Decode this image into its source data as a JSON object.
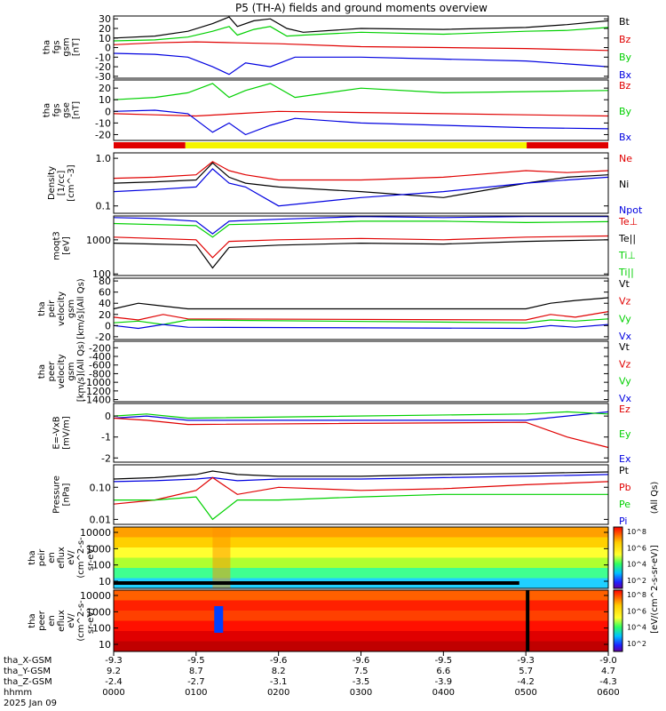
{
  "title": "P5 (TH-A) fields and ground moments overview",
  "colors": {
    "black": "#000000",
    "red": "#e00000",
    "green": "#00d000",
    "blue": "#0000e0",
    "yellow": "#f5f500"
  },
  "time_axis": {
    "ticks": [
      {
        "x": "-9.3",
        "y": "9.2",
        "z": "-2.4",
        "hhmm": "0000"
      },
      {
        "x": "-9.5",
        "y": "8.7",
        "z": "-2.7",
        "hhmm": "0100"
      },
      {
        "x": "-9.6",
        "y": "8.2",
        "z": "-3.1",
        "hhmm": "0200"
      },
      {
        "x": "-9.6",
        "y": "7.5",
        "z": "-3.5",
        "hhmm": "0300"
      },
      {
        "x": "-9.5",
        "y": "6.6",
        "z": "-3.9",
        "hhmm": "0400"
      },
      {
        "x": "-9.3",
        "y": "5.7",
        "z": "-4.2",
        "hhmm": "0500"
      },
      {
        "x": "-9.0",
        "y": "4.7",
        "z": "-4.3",
        "hhmm": "0600"
      }
    ],
    "row_labels": [
      "tha_X-GSM",
      "tha_Y-GSM",
      "tha_Z-GSM",
      "hhmm",
      "2025 Jan 09"
    ]
  },
  "chart_data": [
    {
      "type": "line",
      "ylabel": [
        "tha",
        "fgs",
        "gsm",
        "[nT]"
      ],
      "yticks": [
        "30",
        "20",
        "10",
        "0",
        "-10",
        "-20",
        "-30"
      ],
      "legend": [
        {
          "name": "Bt",
          "color": "black"
        },
        {
          "name": "Bz",
          "color": "red"
        },
        {
          "name": "By",
          "color": "green"
        },
        {
          "name": "Bx",
          "color": "blue"
        }
      ],
      "ylim": [
        -32,
        33
      ],
      "series": [
        {
          "name": "Bt",
          "color": "black",
          "x": [
            0,
            0.5,
            0.9,
            1.2,
            1.4,
            1.5,
            1.7,
            1.9,
            2.1,
            2.3,
            3.0,
            4.0,
            5.0,
            5.5,
            6.0
          ],
          "y": [
            10,
            12,
            17,
            25,
            32,
            22,
            28,
            30,
            20,
            16,
            20,
            19,
            21,
            24,
            28
          ]
        },
        {
          "name": "By",
          "color": "green",
          "x": [
            0,
            0.5,
            0.9,
            1.2,
            1.4,
            1.5,
            1.7,
            1.9,
            2.1,
            2.3,
            3.0,
            4.0,
            5.0,
            5.5,
            6.0
          ],
          "y": [
            7,
            8,
            11,
            17,
            22,
            13,
            19,
            22,
            12,
            13,
            16,
            14,
            17,
            18,
            21
          ]
        },
        {
          "name": "Bz",
          "color": "red",
          "x": [
            0,
            0.5,
            1.0,
            1.5,
            2.0,
            3.0,
            4.0,
            5.0,
            6.0
          ],
          "y": [
            3,
            5,
            6,
            5,
            4,
            1,
            0,
            -1,
            -3
          ]
        },
        {
          "name": "Bx",
          "color": "blue",
          "x": [
            0,
            0.5,
            0.9,
            1.2,
            1.4,
            1.6,
            1.9,
            2.2,
            3.0,
            4.0,
            5.0,
            6.0
          ],
          "y": [
            -6,
            -7,
            -10,
            -20,
            -28,
            -16,
            -20,
            -10,
            -10,
            -12,
            -14,
            -20
          ]
        }
      ]
    },
    {
      "type": "line",
      "ylabel": [
        "tha",
        "fgs",
        "gse",
        "[nT]"
      ],
      "yticks": [
        "20",
        "10",
        "0",
        "-10",
        "-20"
      ],
      "legend": [
        {
          "name": "Bz",
          "color": "red"
        },
        {
          "name": "By",
          "color": "green"
        },
        {
          "name": "Bx",
          "color": "blue"
        }
      ],
      "ylim": [
        -25,
        27
      ],
      "series": [
        {
          "name": "By",
          "color": "green",
          "x": [
            0,
            0.5,
            0.9,
            1.2,
            1.4,
            1.6,
            1.9,
            2.2,
            3.0,
            4.0,
            5.0,
            6.0
          ],
          "y": [
            10,
            12,
            16,
            24,
            12,
            18,
            24,
            12,
            20,
            16,
            17,
            18
          ]
        },
        {
          "name": "Bz",
          "color": "red",
          "x": [
            0,
            0.5,
            1.0,
            1.5,
            2.0,
            3.0,
            4.0,
            5.0,
            6.0
          ],
          "y": [
            -2,
            -3,
            -4,
            -2,
            0,
            -1,
            -2,
            -3,
            -4
          ]
        },
        {
          "name": "Bx",
          "color": "blue",
          "x": [
            0,
            0.5,
            0.9,
            1.2,
            1.4,
            1.6,
            1.9,
            2.2,
            3.0,
            4.0,
            5.0,
            6.0
          ],
          "y": [
            0,
            1,
            -2,
            -18,
            -10,
            -20,
            -12,
            -6,
            -10,
            -12,
            -14,
            -15
          ]
        }
      ]
    },
    {
      "type": "line",
      "ylabel": [
        "Density",
        "[1/cc]",
        "[cm^-3]"
      ],
      "log": true,
      "yticks": [
        "1.0",
        "0.1"
      ],
      "legend": [
        {
          "name": "Ne",
          "color": "red"
        },
        {
          "name": "Ni",
          "color": "black"
        },
        {
          "name": "Npot",
          "color": "blue"
        }
      ],
      "ylim": [
        0.07,
        1.3
      ],
      "series": [
        {
          "name": "Ne",
          "color": "red",
          "x": [
            0,
            0.5,
            1.0,
            1.2,
            1.4,
            1.6,
            2.0,
            3.0,
            4.0,
            5.0,
            5.5,
            6.0
          ],
          "y": [
            0.38,
            0.4,
            0.45,
            0.85,
            0.55,
            0.45,
            0.35,
            0.35,
            0.4,
            0.55,
            0.5,
            0.55
          ]
        },
        {
          "name": "Ni",
          "color": "black",
          "x": [
            0,
            0.5,
            1.0,
            1.2,
            1.4,
            1.6,
            2.0,
            3.0,
            4.0,
            5.0,
            5.5,
            6.0
          ],
          "y": [
            0.3,
            0.32,
            0.35,
            0.8,
            0.4,
            0.3,
            0.25,
            0.2,
            0.15,
            0.3,
            0.4,
            0.45
          ]
        },
        {
          "name": "Npot",
          "color": "blue",
          "x": [
            0,
            0.5,
            1.0,
            1.2,
            1.4,
            1.6,
            2.0,
            3.0,
            4.0,
            5.0,
            5.5,
            6.0
          ],
          "y": [
            0.2,
            0.22,
            0.25,
            0.6,
            0.3,
            0.25,
            0.1,
            0.15,
            0.2,
            0.3,
            0.35,
            0.4
          ]
        }
      ]
    },
    {
      "type": "line",
      "ylabel": [
        "moqt3",
        "[eV]"
      ],
      "log": true,
      "yticks": [
        "1000",
        "100"
      ],
      "legend": [
        {
          "name": "Te⊥",
          "color": "red"
        },
        {
          "name": "Te||",
          "color": "black"
        },
        {
          "name": "Ti⊥",
          "color": "green"
        },
        {
          "name": "Ti||",
          "color": "green"
        }
      ],
      "ylim": [
        90,
        5000
      ],
      "series": [
        {
          "name": "Ti||",
          "color": "blue",
          "x": [
            0,
            0.5,
            1.0,
            1.2,
            1.4,
            2.0,
            3.0,
            4.0,
            5.0,
            6.0
          ],
          "y": [
            4500,
            4200,
            3500,
            1500,
            3500,
            4000,
            4800,
            4500,
            4800,
            4800
          ]
        },
        {
          "name": "Ti⊥",
          "color": "green",
          "x": [
            0,
            0.5,
            1.0,
            1.2,
            1.4,
            2.0,
            3.0,
            4.0,
            5.0,
            6.0
          ],
          "y": [
            3000,
            2800,
            2600,
            1200,
            2800,
            3000,
            3500,
            3500,
            3200,
            3400
          ]
        },
        {
          "name": "Te⊥",
          "color": "red",
          "x": [
            0,
            0.5,
            1.0,
            1.2,
            1.4,
            2.0,
            3.0,
            4.0,
            5.0,
            6.0
          ],
          "y": [
            1200,
            1100,
            1000,
            300,
            900,
            1000,
            1100,
            1000,
            1200,
            1300
          ]
        },
        {
          "name": "Te||",
          "color": "black",
          "x": [
            0,
            0.5,
            1.0,
            1.2,
            1.4,
            2.0,
            3.0,
            4.0,
            5.0,
            6.0
          ],
          "y": [
            800,
            750,
            700,
            150,
            600,
            700,
            800,
            750,
            900,
            1000
          ]
        }
      ]
    },
    {
      "type": "line",
      "ylabel": [
        "tha",
        "peir",
        "velocity",
        "gsm",
        "[km/s](All Qs)"
      ],
      "yticks": [
        "80",
        "60",
        "40",
        "20",
        "0",
        "-20"
      ],
      "legend": [
        {
          "name": "Vt",
          "color": "black"
        },
        {
          "name": "Vz",
          "color": "red"
        },
        {
          "name": "Vy",
          "color": "green"
        },
        {
          "name": "Vx",
          "color": "blue"
        }
      ],
      "ylim": [
        -25,
        85
      ],
      "series": [
        {
          "name": "Vt",
          "color": "black",
          "x": [
            0,
            0.3,
            0.6,
            0.9,
            5.0,
            5.3,
            5.6,
            6.0
          ],
          "y": [
            30,
            40,
            35,
            30,
            30,
            40,
            45,
            50
          ]
        },
        {
          "name": "Vz",
          "color": "red",
          "x": [
            0,
            0.3,
            0.6,
            0.9,
            5.0,
            5.3,
            5.6,
            6.0
          ],
          "y": [
            15,
            10,
            20,
            12,
            10,
            20,
            15,
            25
          ]
        },
        {
          "name": "Vy",
          "color": "green",
          "x": [
            0,
            0.3,
            0.6,
            0.9,
            5.0,
            5.3,
            5.6,
            6.0
          ],
          "y": [
            5,
            8,
            2,
            10,
            5,
            10,
            8,
            12
          ]
        },
        {
          "name": "Vx",
          "color": "blue",
          "x": [
            0,
            0.3,
            0.6,
            0.9,
            5.0,
            5.3,
            5.6,
            6.0
          ],
          "y": [
            0,
            -5,
            2,
            -3,
            -5,
            0,
            -3,
            2
          ]
        }
      ]
    },
    {
      "type": "line",
      "ylabel": [
        "tha",
        "peer",
        "velocity",
        "gsm",
        "[km/s](All Qs)"
      ],
      "yticks": [
        "-200",
        "-400",
        "-600",
        "-800",
        "-1000",
        "-1200",
        "-1400"
      ],
      "legend": [
        {
          "name": "Vt",
          "color": "black"
        },
        {
          "name": "Vz",
          "color": "red"
        },
        {
          "name": "Vy",
          "color": "green"
        },
        {
          "name": "Vx",
          "color": "blue"
        }
      ],
      "ylim": [
        -1450,
        -50
      ],
      "series": []
    },
    {
      "type": "line",
      "ylabel": [
        "E=-VxB",
        "[mV/m]"
      ],
      "yticks": [
        "0",
        "-1",
        "-2"
      ],
      "legend": [
        {
          "name": "Ez",
          "color": "red"
        },
        {
          "name": "Ey",
          "color": "green"
        },
        {
          "name": "Ex",
          "color": "blue"
        }
      ],
      "ylim": [
        -2.2,
        0.6
      ],
      "series": [
        {
          "name": "Ex",
          "color": "blue",
          "x": [
            0,
            0.4,
            0.9,
            5.0,
            5.5,
            6.0
          ],
          "y": [
            -0.1,
            0,
            -0.2,
            -0.2,
            0,
            0.2
          ]
        },
        {
          "name": "Ey",
          "color": "green",
          "x": [
            0,
            0.4,
            0.9,
            5.0,
            5.5,
            6.0
          ],
          "y": [
            0,
            0.1,
            -0.1,
            0.1,
            0.2,
            0.1
          ]
        },
        {
          "name": "Ez",
          "color": "red",
          "x": [
            0,
            0.4,
            0.9,
            5.0,
            5.5,
            6.0
          ],
          "y": [
            -0.1,
            -0.2,
            -0.4,
            -0.3,
            -1.0,
            -1.5
          ]
        }
      ]
    },
    {
      "type": "line",
      "ylabel": [
        "Pressure",
        "[nPa]"
      ],
      "log": true,
      "yticks": [
        "0.10",
        "0.01"
      ],
      "legend": [
        {
          "name": "Pt",
          "color": "black"
        },
        {
          "name": "Pb",
          "color": "red"
        },
        {
          "name": "Pe",
          "color": "green"
        },
        {
          "name": "Pi",
          "color": "blue"
        }
      ],
      "ylim": [
        0.007,
        0.5
      ],
      "series": [
        {
          "name": "Pt",
          "color": "black",
          "x": [
            0,
            0.5,
            1.0,
            1.2,
            1.5,
            2.0,
            3.0,
            4.0,
            5.0,
            6.0
          ],
          "y": [
            0.18,
            0.2,
            0.25,
            0.32,
            0.25,
            0.22,
            0.22,
            0.25,
            0.27,
            0.3
          ]
        },
        {
          "name": "Pi",
          "color": "blue",
          "x": [
            0,
            0.5,
            1.0,
            1.2,
            1.5,
            2.0,
            3.0,
            4.0,
            5.0,
            6.0
          ],
          "y": [
            0.15,
            0.16,
            0.18,
            0.2,
            0.16,
            0.18,
            0.18,
            0.2,
            0.22,
            0.25
          ]
        },
        {
          "name": "Pb",
          "color": "red",
          "x": [
            0,
            0.5,
            1.0,
            1.2,
            1.5,
            2.0,
            3.0,
            4.0,
            5.0,
            6.0
          ],
          "y": [
            0.03,
            0.04,
            0.08,
            0.2,
            0.06,
            0.1,
            0.08,
            0.09,
            0.12,
            0.15
          ]
        },
        {
          "name": "Pe",
          "color": "green",
          "x": [
            0,
            0.5,
            1.0,
            1.2,
            1.5,
            2.0,
            3.0,
            4.0,
            5.0,
            6.0
          ],
          "y": [
            0.04,
            0.04,
            0.05,
            0.01,
            0.04,
            0.04,
            0.05,
            0.06,
            0.06,
            0.06
          ]
        }
      ]
    },
    {
      "type": "heatmap",
      "ylabel": [
        "tha",
        "peir",
        "en",
        "eflux",
        "eV/",
        "(cm^2-s-",
        "sr-eV)"
      ],
      "log": true,
      "yticks": [
        "10000",
        "1000",
        "100",
        "10"
      ]
    },
    {
      "type": "heatmap",
      "ylabel": [
        "tha",
        "peer",
        "en",
        "eflux",
        "eV/",
        "(cm^2-s-",
        "sr-eV)"
      ],
      "log": true,
      "yticks": [
        "10000",
        "1000",
        "100",
        "10"
      ]
    }
  ],
  "colorbar": {
    "label": "[eV/(cm^2-s-sr-eV)]",
    "ticks": [
      "10^8",
      "10^6",
      "10^4",
      "10^2",
      "10^8",
      "10^6",
      "10^4",
      "10^2"
    ],
    "units_label": "(All Qs)"
  }
}
